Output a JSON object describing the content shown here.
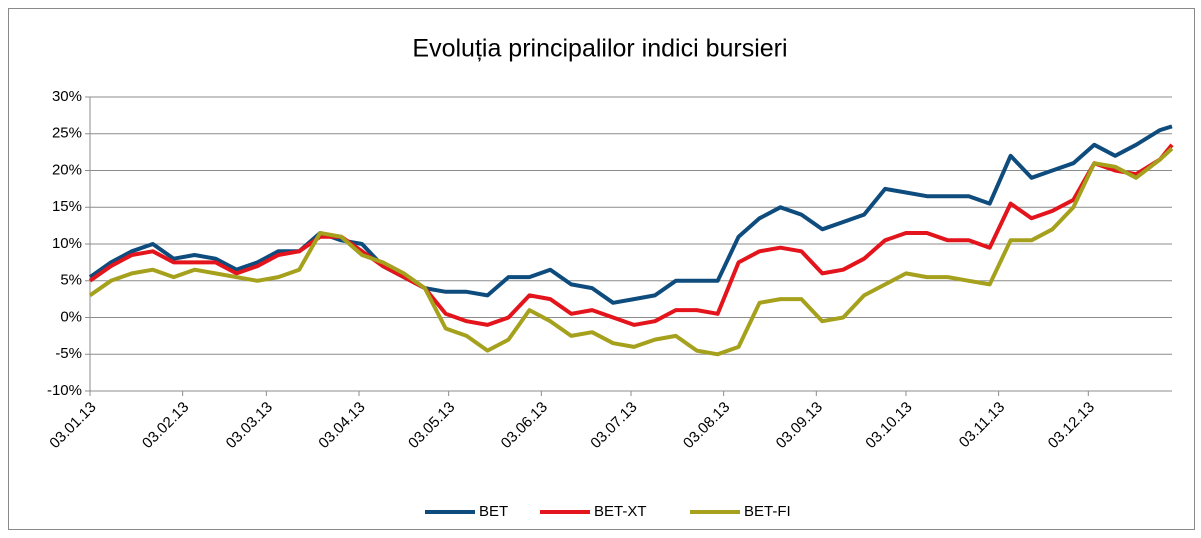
{
  "chart_data": {
    "type": "line",
    "title": "Evoluția principalilor indici bursieri",
    "x": [
      "2013-01-03",
      "2013-01-10",
      "2013-01-17",
      "2013-01-24",
      "2013-01-31",
      "2013-02-07",
      "2013-02-14",
      "2013-02-21",
      "2013-02-28",
      "2013-03-07",
      "2013-03-14",
      "2013-03-21",
      "2013-03-28",
      "2013-04-04",
      "2013-04-11",
      "2013-04-18",
      "2013-04-25",
      "2013-05-02",
      "2013-05-09",
      "2013-05-16",
      "2013-05-23",
      "2013-05-30",
      "2013-06-06",
      "2013-06-13",
      "2013-06-20",
      "2013-06-27",
      "2013-07-04",
      "2013-07-11",
      "2013-07-18",
      "2013-07-25",
      "2013-08-01",
      "2013-08-08",
      "2013-08-15",
      "2013-08-22",
      "2013-08-29",
      "2013-09-05",
      "2013-09-12",
      "2013-09-19",
      "2013-09-26",
      "2013-10-03",
      "2013-10-10",
      "2013-10-17",
      "2013-10-24",
      "2013-10-31",
      "2013-11-07",
      "2013-11-14",
      "2013-11-21",
      "2013-11-28",
      "2013-12-05",
      "2013-12-12",
      "2013-12-19",
      "2013-12-27",
      "2013-12-31"
    ],
    "series": [
      {
        "name": "BET",
        "color": "#0f4c7e",
        "values": [
          5.5,
          7.5,
          9,
          10,
          8,
          8.5,
          8,
          6.5,
          7.5,
          9,
          9,
          11.5,
          10.5,
          10,
          7,
          5.5,
          4,
          3.5,
          3.5,
          3,
          5.5,
          5.5,
          6.5,
          4.5,
          4,
          2,
          2.5,
          3,
          5,
          5,
          5,
          11,
          13.5,
          15,
          14,
          12,
          13,
          14,
          17.5,
          17,
          16.5,
          16.5,
          16.5,
          15.5,
          22,
          19,
          20,
          21,
          23.5,
          22,
          23.5,
          25.5,
          26
        ]
      },
      {
        "name": "BET-XT",
        "color": "#e3141b",
        "values": [
          5,
          7,
          8.5,
          9,
          7.5,
          7.5,
          7.5,
          6,
          7,
          8.5,
          9,
          11,
          11,
          9,
          7,
          5.5,
          4,
          0.5,
          -0.5,
          -1,
          0,
          3,
          2.5,
          0.5,
          1,
          0,
          -1,
          -0.5,
          1,
          1,
          0.5,
          7.5,
          9,
          9.5,
          9,
          6,
          6.5,
          8,
          10.5,
          11.5,
          11.5,
          10.5,
          10.5,
          9.5,
          15.5,
          13.5,
          14.5,
          16,
          21,
          20,
          19.5,
          21.5,
          23.5
        ]
      },
      {
        "name": "BET-FI",
        "color": "#a5a11d",
        "values": [
          3,
          5,
          6,
          6.5,
          5.5,
          6.5,
          6,
          5.5,
          5,
          5.5,
          6.5,
          11.5,
          11,
          8.5,
          7.5,
          6,
          4,
          -1.5,
          -2.5,
          -4.5,
          -3,
          1,
          -0.5,
          -2.5,
          -2,
          -3.5,
          -4,
          -3,
          -2.5,
          -4.5,
          -5,
          -4,
          2,
          2.5,
          2.5,
          -0.5,
          0,
          3,
          4.5,
          6,
          5.5,
          5.5,
          5,
          4.5,
          10.5,
          10.5,
          12,
          15,
          21,
          20.5,
          19,
          21.5,
          23
        ]
      }
    ],
    "xlim": [
      "2013-01-03",
      "2013-12-31"
    ],
    "xticks": [
      {
        "value": "2013-01-03",
        "label": "03.01.13"
      },
      {
        "value": "2013-02-03",
        "label": "03.02.13"
      },
      {
        "value": "2013-03-03",
        "label": "03.03.13"
      },
      {
        "value": "2013-04-03",
        "label": "03.04.13"
      },
      {
        "value": "2013-05-03",
        "label": "03.05.13"
      },
      {
        "value": "2013-06-03",
        "label": "03.06.13"
      },
      {
        "value": "2013-07-03",
        "label": "03.07.13"
      },
      {
        "value": "2013-08-03",
        "label": "03.08.13"
      },
      {
        "value": "2013-09-03",
        "label": "03.09.13"
      },
      {
        "value": "2013-10-03",
        "label": "03.10.13"
      },
      {
        "value": "2013-11-03",
        "label": "03.11.13"
      },
      {
        "value": "2013-12-03",
        "label": "03.12.13"
      }
    ],
    "ylim": [
      -10,
      30
    ],
    "yticks": [
      {
        "value": -10,
        "label": "-10%"
      },
      {
        "value": -5,
        "label": "-5%"
      },
      {
        "value": 0,
        "label": "0%"
      },
      {
        "value": 5,
        "label": "5%"
      },
      {
        "value": 10,
        "label": "10%"
      },
      {
        "value": 15,
        "label": "15%"
      },
      {
        "value": 20,
        "label": "20%"
      },
      {
        "value": 25,
        "label": "25%"
      },
      {
        "value": 30,
        "label": "30%"
      }
    ],
    "grid": true,
    "legend": "bottom"
  }
}
